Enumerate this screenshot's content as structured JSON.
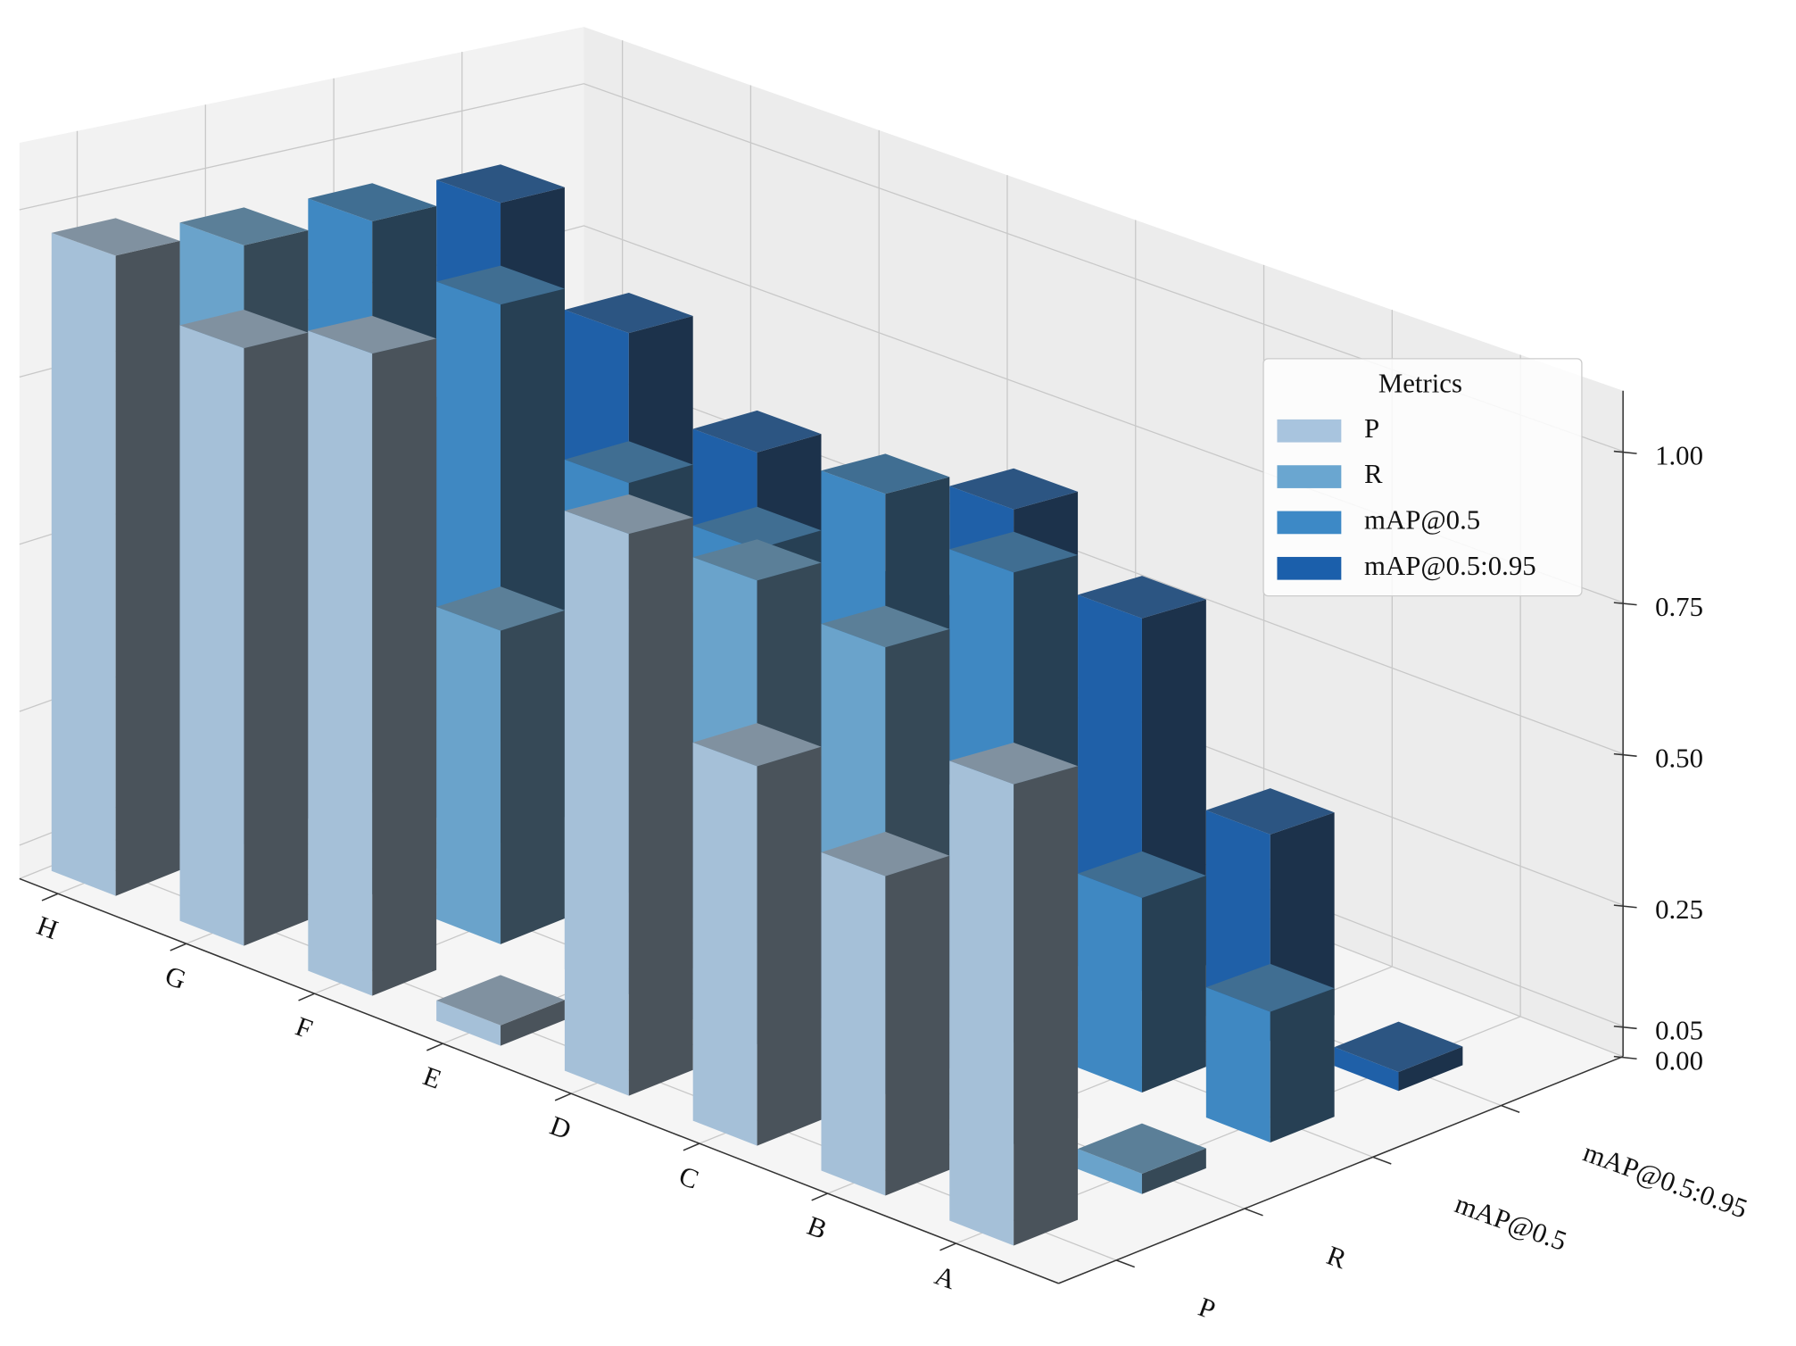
{
  "chart_data": {
    "type": "bar3d",
    "categories": [
      "H",
      "G",
      "F",
      "E",
      "D",
      "C",
      "B",
      "A"
    ],
    "series": [
      {
        "name": "P",
        "color": "#a8c4de",
        "values": [
          0.96,
          0.89,
          0.95,
          0.03,
          0.82,
          0.55,
          0.46,
          0.66
        ]
      },
      {
        "name": "R",
        "color": "#6aa6d0",
        "values": [
          0.93,
          0.74,
          0.48,
          0.55,
          0.7,
          0.67,
          0.5,
          0.03
        ]
      },
      {
        "name": "mAP@0.5",
        "color": "#3d89c6",
        "values": [
          0.92,
          0.86,
          0.65,
          0.62,
          0.78,
          0.73,
          0.3,
          0.2
        ]
      },
      {
        "name": "mAP@0.5:0.95",
        "color": "#1b5fab",
        "values": [
          0.9,
          0.76,
          0.64,
          0.45,
          0.7,
          0.6,
          0.33,
          0.03
        ]
      }
    ],
    "zlim": [
      0,
      1.1
    ],
    "zticks": [
      {
        "value": 0,
        "label": "0.00"
      },
      0.05,
      0.25,
      {
        "value": 0.5,
        "label": "0.50"
      },
      0.75,
      {
        "value": 1,
        "label": "1.00"
      }
    ],
    "legend_title": "Metrics",
    "legend": "upper right",
    "grid": true
  }
}
